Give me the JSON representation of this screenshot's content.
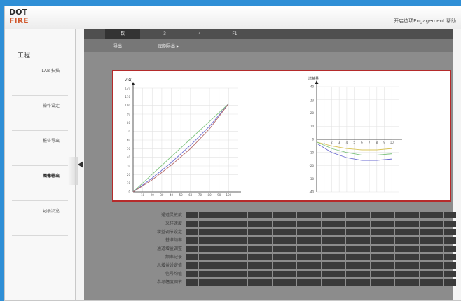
{
  "app": {
    "logo_line1": "DOT",
    "logo_line2": "FIRE",
    "top_right": "开启选项Engagement 帮助"
  },
  "sidebar": {
    "title": "工程",
    "items": [
      {
        "label": "LAB 扫描"
      },
      {
        "label": "操作设定"
      },
      {
        "label": "报告导出"
      },
      {
        "label": "图像输出"
      },
      {
        "label": "记录浏览"
      }
    ],
    "active_index": 3
  },
  "tabs": [
    {
      "label": "数"
    },
    {
      "label": "3"
    },
    {
      "label": "4"
    },
    {
      "label": "F1"
    }
  ],
  "subbar": {
    "left": "导出",
    "right": "图例导出 ▸"
  },
  "chart_data": [
    {
      "type": "line",
      "title": "",
      "ylabel": "V(Ω)",
      "xlabel": "",
      "xlim": [
        0,
        110
      ],
      "ylim": [
        0,
        120
      ],
      "x_ticks": [
        10,
        20,
        30,
        40,
        50,
        60,
        70,
        80,
        90,
        100
      ],
      "y_ticks": [
        0,
        10,
        20,
        30,
        40,
        50,
        60,
        70,
        80,
        90,
        100,
        110,
        120
      ],
      "grid": true,
      "series": [
        {
          "color": "#7ec27e",
          "x": [
            0,
            100
          ],
          "y": [
            0,
            102
          ]
        },
        {
          "color": "#6a6ad0",
          "x": [
            0,
            20,
            40,
            60,
            80,
            100
          ],
          "y": [
            0,
            16,
            34,
            54,
            76,
            102
          ]
        },
        {
          "color": "#b56a6a",
          "x": [
            0,
            20,
            40,
            60,
            80,
            100
          ],
          "y": [
            0,
            14,
            31,
            50,
            73,
            102
          ]
        }
      ]
    },
    {
      "type": "line",
      "title": "",
      "ylabel": "增益量",
      "xlabel": "",
      "xlim": [
        0,
        11
      ],
      "ylim": [
        -40,
        40
      ],
      "x_ticks": [
        1,
        2,
        3,
        4,
        5,
        6,
        7,
        8,
        9,
        10
      ],
      "y_ticks": [
        40,
        30,
        20,
        10,
        0,
        -10,
        -20,
        -30,
        -40
      ],
      "grid": true,
      "series": [
        {
          "color": "#555555",
          "x": [
            0,
            10
          ],
          "y": [
            0,
            0
          ]
        },
        {
          "color": "#d8c45a",
          "x": [
            0,
            2,
            4,
            6,
            8,
            10
          ],
          "y": [
            -2,
            -5,
            -7,
            -8,
            -8,
            -7
          ]
        },
        {
          "color": "#7ec27e",
          "x": [
            0,
            2,
            4,
            6,
            8,
            10
          ],
          "y": [
            -2,
            -7,
            -10,
            -12,
            -12,
            -11
          ]
        },
        {
          "color": "#6a6ad0",
          "x": [
            0,
            2,
            4,
            6,
            8,
            10
          ],
          "y": [
            -3,
            -10,
            -14,
            -16,
            -16,
            -15
          ]
        }
      ]
    }
  ],
  "table": {
    "rows": [
      {
        "label": "通道灵敏度"
      },
      {
        "label": "采样速度"
      },
      {
        "label": "增益调节设定"
      },
      {
        "label": "基准频率"
      },
      {
        "label": "通道增益调整"
      },
      {
        "label": "频率记录"
      },
      {
        "label": "总增益设定值"
      },
      {
        "label": "信号均值"
      },
      {
        "label": "参考幅度调节"
      }
    ],
    "columns": 22
  }
}
